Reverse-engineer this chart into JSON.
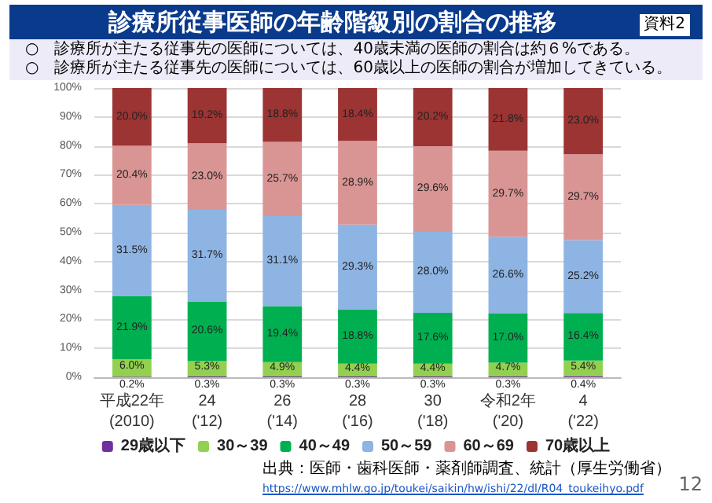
{
  "chart_data": {
    "type": "bar",
    "stacked": true,
    "title": "診療所従事医師の年齢階級別の割合の推移",
    "annotations": [
      "資料2",
      "○　診療所が主たる従事先の医師については、40歳未満の医師の割合は約６%である。",
      "○　診療所が主たる従事先の医師については、60歳以上の医師の割合が増加してきている。",
      "出典：医師・歯科医師・薬剤師調査、統計（厚生労働省）",
      "https://www.mhlw.go.jp/toukei/saikin/hw/ishi/22/dl/R04_toukeihyo.pdf",
      "12"
    ],
    "categories": [
      "平成22年\n(2010)",
      "24\n('12)",
      "26\n('14)",
      "28\n('16)",
      "30\n('18)",
      "令和2年\n('20)",
      "4\n('22)"
    ],
    "ylim": [
      0,
      100
    ],
    "yticks": [
      {
        "value": 0,
        "label": "0%"
      },
      {
        "value": 10,
        "label": "10%"
      },
      {
        "value": 20,
        "label": "20%"
      },
      {
        "value": 30,
        "label": "30%"
      },
      {
        "value": 40,
        "label": "40%"
      },
      {
        "value": 50,
        "label": "50%"
      },
      {
        "value": 60,
        "label": "60%"
      },
      {
        "value": 70,
        "label": "70%"
      },
      {
        "value": 80,
        "label": "80%"
      },
      {
        "value": 90,
        "label": "90%"
      },
      {
        "value": 100,
        "label": "100%"
      }
    ],
    "grid": "y",
    "legend": "bottom",
    "series": [
      {
        "name": "29歳以下",
        "color": "#7030a0",
        "values": [
          0.2,
          0.3,
          0.3,
          0.3,
          0.3,
          0.3,
          0.4
        ],
        "value_labels": [
          "0.2%",
          "0.3%",
          "0.3%",
          "0.3%",
          "0.3%",
          "0.3%",
          "0.4%"
        ]
      },
      {
        "name": "30～39",
        "color": "#92d050",
        "values": [
          6.0,
          5.3,
          4.9,
          4.4,
          4.4,
          4.7,
          5.4
        ],
        "value_labels": [
          "6.0%",
          "5.3%",
          "4.9%",
          "4.4%",
          "4.4%",
          "4.7%",
          "5.4%"
        ]
      },
      {
        "name": "40～49",
        "color": "#00b050",
        "values": [
          21.9,
          20.6,
          19.4,
          18.8,
          17.6,
          17.0,
          16.4
        ],
        "value_labels": [
          "21.9%",
          "20.6%",
          "19.4%",
          "18.8%",
          "17.6%",
          "17.0%",
          "16.4%"
        ]
      },
      {
        "name": "50～59",
        "color": "#8eb4e3",
        "values": [
          31.5,
          31.7,
          31.1,
          29.3,
          28.0,
          26.6,
          25.2
        ],
        "value_labels": [
          "31.5%",
          "31.7%",
          "31.1%",
          "29.3%",
          "28.0%",
          "26.6%",
          "25.2%"
        ]
      },
      {
        "name": "60～69",
        "color": "#d99594",
        "values": [
          20.4,
          23.0,
          25.7,
          28.9,
          29.6,
          29.7,
          29.7
        ],
        "value_labels": [
          "20.4%",
          "23.0%",
          "25.7%",
          "28.9%",
          "29.6%",
          "29.7%",
          "29.7%"
        ]
      },
      {
        "name": "70歳以上",
        "color": "#9b3433",
        "values": [
          20.0,
          19.2,
          18.8,
          18.4,
          20.2,
          21.8,
          23.0
        ],
        "value_labels": [
          "20.0%",
          "19.2%",
          "18.8%",
          "18.4%",
          "20.2%",
          "21.8%",
          "23.0%"
        ]
      }
    ]
  }
}
